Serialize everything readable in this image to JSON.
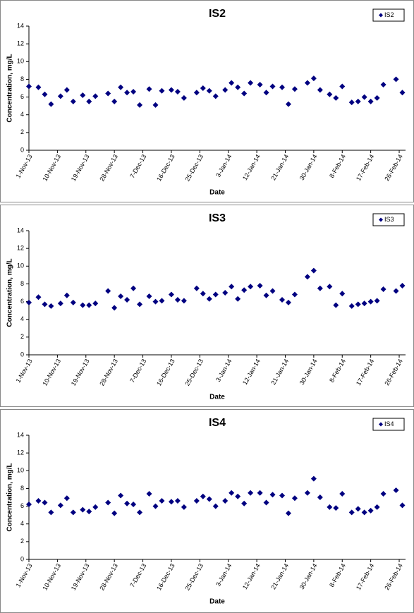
{
  "chart_data": [
    {
      "type": "scatter",
      "title": "IS2",
      "xlabel": "Date",
      "ylabel": "Concentration, mg/L",
      "legend": "top-right",
      "x": [
        "2013-11-01",
        "2013-11-04",
        "2013-11-06",
        "2013-11-08",
        "2013-11-11",
        "2013-11-13",
        "2013-11-15",
        "2013-11-18",
        "2013-11-20",
        "2013-11-22",
        "2013-11-26",
        "2013-11-28",
        "2013-11-30",
        "2013-12-02",
        "2013-12-04",
        "2013-12-06",
        "2013-12-09",
        "2013-12-11",
        "2013-12-13",
        "2013-12-16",
        "2013-12-18",
        "2013-12-20",
        "2013-12-24",
        "2013-12-26",
        "2013-12-28",
        "2013-12-30",
        "2014-01-02",
        "2014-01-04",
        "2014-01-06",
        "2014-01-08",
        "2014-01-10",
        "2014-01-13",
        "2014-01-15",
        "2014-01-17",
        "2014-01-20",
        "2014-01-22",
        "2014-01-24",
        "2014-01-28",
        "2014-01-30",
        "2014-02-01",
        "2014-02-04",
        "2014-02-06",
        "2014-02-08",
        "2014-02-11",
        "2014-02-13",
        "2014-02-15",
        "2014-02-17",
        "2014-02-19",
        "2014-02-21",
        "2014-02-25",
        "2014-02-27"
      ],
      "series": [
        {
          "name": "IS2",
          "color": "#000080",
          "values": [
            7.2,
            7.1,
            6.3,
            5.2,
            6.1,
            6.8,
            5.5,
            6.2,
            5.5,
            6.1,
            6.4,
            5.5,
            7.1,
            6.5,
            6.6,
            5.1,
            6.9,
            5.1,
            6.7,
            6.8,
            6.6,
            5.9,
            6.5,
            7.0,
            6.7,
            6.1,
            6.8,
            7.6,
            7.1,
            6.4,
            7.6,
            7.4,
            6.5,
            7.2,
            7.1,
            5.2,
            6.9,
            7.6,
            8.1,
            6.8,
            6.3,
            5.9,
            7.2,
            5.4,
            5.5,
            6.0,
            5.5,
            5.9,
            7.4,
            8.0,
            6.5
          ]
        }
      ],
      "ylim": [
        0,
        14
      ],
      "yticks": [
        0,
        2,
        4,
        6,
        8,
        10,
        12,
        14
      ],
      "xlim": [
        "2013-11-01",
        "2014-02-28"
      ],
      "xticks": [
        {
          "value": "2013-11-01",
          "label": "1-Nov-13"
        },
        {
          "value": "2013-11-10",
          "label": "10-Nov-13"
        },
        {
          "value": "2013-11-19",
          "label": "19-Nov-13"
        },
        {
          "value": "2013-11-28",
          "label": "28-Nov-13"
        },
        {
          "value": "2013-12-07",
          "label": "7-Dec-13"
        },
        {
          "value": "2013-12-16",
          "label": "16-Dec-13"
        },
        {
          "value": "2013-12-25",
          "label": "25-Dec-13"
        },
        {
          "value": "2014-01-03",
          "label": "3-Jan-14"
        },
        {
          "value": "2014-01-12",
          "label": "12-Jan-14"
        },
        {
          "value": "2014-01-21",
          "label": "21-Jan-14"
        },
        {
          "value": "2014-01-30",
          "label": "30-Jan-14"
        },
        {
          "value": "2014-02-08",
          "label": "8-Feb-14"
        },
        {
          "value": "2014-02-17",
          "label": "17-Feb-14"
        },
        {
          "value": "2014-02-26",
          "label": "26-Feb-14"
        }
      ]
    },
    {
      "type": "scatter",
      "title": "IS3",
      "xlabel": "Date",
      "ylabel": "Concentration, mg/L",
      "legend": "top-right",
      "x": [
        "2013-11-01",
        "2013-11-04",
        "2013-11-06",
        "2013-11-08",
        "2013-11-11",
        "2013-11-13",
        "2013-11-15",
        "2013-11-18",
        "2013-11-20",
        "2013-11-22",
        "2013-11-26",
        "2013-11-28",
        "2013-11-30",
        "2013-12-02",
        "2013-12-04",
        "2013-12-06",
        "2013-12-09",
        "2013-12-11",
        "2013-12-13",
        "2013-12-16",
        "2013-12-18",
        "2013-12-20",
        "2013-12-24",
        "2013-12-26",
        "2013-12-28",
        "2013-12-30",
        "2014-01-02",
        "2014-01-04",
        "2014-01-06",
        "2014-01-08",
        "2014-01-10",
        "2014-01-13",
        "2014-01-15",
        "2014-01-17",
        "2014-01-20",
        "2014-01-22",
        "2014-01-24",
        "2014-01-28",
        "2014-01-30",
        "2014-02-01",
        "2014-02-04",
        "2014-02-06",
        "2014-02-08",
        "2014-02-11",
        "2014-02-13",
        "2014-02-15",
        "2014-02-17",
        "2014-02-19",
        "2014-02-21",
        "2014-02-25",
        "2014-02-27"
      ],
      "series": [
        {
          "name": "IS3",
          "color": "#000080",
          "values": [
            5.9,
            6.5,
            5.7,
            5.5,
            5.8,
            6.7,
            5.9,
            5.6,
            5.6,
            5.8,
            7.2,
            5.3,
            6.6,
            6.2,
            7.5,
            5.7,
            6.6,
            6.0,
            6.1,
            6.8,
            6.2,
            6.1,
            7.5,
            6.9,
            6.3,
            6.8,
            7.0,
            7.7,
            6.3,
            7.3,
            7.7,
            7.8,
            6.7,
            7.2,
            6.2,
            5.9,
            6.8,
            8.8,
            9.5,
            7.5,
            7.7,
            5.6,
            6.9,
            5.5,
            5.7,
            5.8,
            6.0,
            6.1,
            7.4,
            7.2,
            7.8
          ]
        }
      ],
      "ylim": [
        0,
        14
      ],
      "yticks": [
        0,
        2,
        4,
        6,
        8,
        10,
        12,
        14
      ],
      "xlim": [
        "2013-11-01",
        "2014-02-28"
      ],
      "xticks": [
        {
          "value": "2013-11-01",
          "label": "1-Nov-13"
        },
        {
          "value": "2013-11-10",
          "label": "10-Nov-13"
        },
        {
          "value": "2013-11-19",
          "label": "19-Nov-13"
        },
        {
          "value": "2013-11-28",
          "label": "28-Nov-13"
        },
        {
          "value": "2013-12-07",
          "label": "7-Dec-13"
        },
        {
          "value": "2013-12-16",
          "label": "16-Dec-13"
        },
        {
          "value": "2013-12-25",
          "label": "25-Dec-13"
        },
        {
          "value": "2014-01-03",
          "label": "3-Jan-14"
        },
        {
          "value": "2014-01-12",
          "label": "12-Jan-14"
        },
        {
          "value": "2014-01-21",
          "label": "21-Jan-14"
        },
        {
          "value": "2014-01-30",
          "label": "30-Jan-14"
        },
        {
          "value": "2014-02-08",
          "label": "8-Feb-14"
        },
        {
          "value": "2014-02-17",
          "label": "17-Feb-14"
        },
        {
          "value": "2014-02-26",
          "label": "26-Feb-14"
        }
      ]
    },
    {
      "type": "scatter",
      "title": "IS4",
      "xlabel": "Date",
      "ylabel": "Concentration, mg/L",
      "legend": "top-right",
      "x": [
        "2013-11-01",
        "2013-11-04",
        "2013-11-06",
        "2013-11-08",
        "2013-11-11",
        "2013-11-13",
        "2013-11-15",
        "2013-11-18",
        "2013-11-20",
        "2013-11-22",
        "2013-11-26",
        "2013-11-28",
        "2013-11-30",
        "2013-12-02",
        "2013-12-04",
        "2013-12-06",
        "2013-12-09",
        "2013-12-11",
        "2013-12-13",
        "2013-12-16",
        "2013-12-18",
        "2013-12-20",
        "2013-12-24",
        "2013-12-26",
        "2013-12-28",
        "2013-12-30",
        "2014-01-02",
        "2014-01-04",
        "2014-01-06",
        "2014-01-08",
        "2014-01-10",
        "2014-01-13",
        "2014-01-15",
        "2014-01-17",
        "2014-01-20",
        "2014-01-22",
        "2014-01-24",
        "2014-01-28",
        "2014-01-30",
        "2014-02-01",
        "2014-02-04",
        "2014-02-06",
        "2014-02-08",
        "2014-02-11",
        "2014-02-13",
        "2014-02-15",
        "2014-02-17",
        "2014-02-19",
        "2014-02-21",
        "2014-02-25",
        "2014-02-27"
      ],
      "series": [
        {
          "name": "IS4",
          "color": "#000080",
          "values": [
            6.2,
            6.6,
            6.4,
            5.3,
            6.1,
            6.9,
            5.3,
            5.6,
            5.4,
            5.9,
            6.4,
            5.2,
            7.2,
            6.3,
            6.2,
            5.3,
            7.4,
            6.0,
            6.6,
            6.5,
            6.6,
            5.9,
            6.6,
            7.1,
            6.8,
            6.0,
            6.6,
            7.5,
            7.1,
            6.3,
            7.5,
            7.5,
            6.4,
            7.3,
            7.2,
            5.2,
            6.9,
            7.5,
            9.1,
            7.0,
            5.9,
            5.8,
            7.4,
            5.3,
            5.7,
            5.3,
            5.5,
            5.9,
            7.4,
            7.8,
            6.1
          ]
        }
      ],
      "ylim": [
        0,
        14
      ],
      "yticks": [
        0,
        2,
        4,
        6,
        8,
        10,
        12,
        14
      ],
      "xlim": [
        "2013-11-01",
        "2014-02-28"
      ],
      "xticks": [
        {
          "value": "2013-11-01",
          "label": "1-Nov-13"
        },
        {
          "value": "2013-11-10",
          "label": "10-Nov-13"
        },
        {
          "value": "2013-11-19",
          "label": "19-Nov-13"
        },
        {
          "value": "2013-11-28",
          "label": "28-Nov-13"
        },
        {
          "value": "2013-12-07",
          "label": "7-Dec-13"
        },
        {
          "value": "2013-12-16",
          "label": "16-Dec-13"
        },
        {
          "value": "2013-12-25",
          "label": "25-Dec-13"
        },
        {
          "value": "2014-01-03",
          "label": "3-Jan-14"
        },
        {
          "value": "2014-01-12",
          "label": "12-Jan-14"
        },
        {
          "value": "2014-01-21",
          "label": "21-Jan-14"
        },
        {
          "value": "2014-01-30",
          "label": "30-Jan-14"
        },
        {
          "value": "2014-02-08",
          "label": "8-Feb-14"
        },
        {
          "value": "2014-02-17",
          "label": "17-Feb-14"
        },
        {
          "value": "2014-02-26",
          "label": "26-Feb-14"
        }
      ]
    }
  ]
}
